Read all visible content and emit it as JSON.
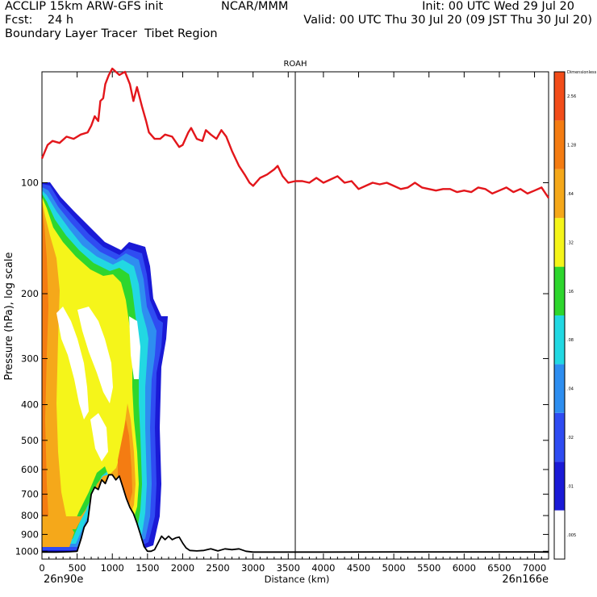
{
  "header": {
    "line1_left": "ACCLIP 15km ARW-GFS init",
    "line1_mid": "NCAR/MMM",
    "line1_right": "Init: 00 UTC Wed 29 Jul 20",
    "line2_left": "Fcst:    24 h",
    "line2_right": "Valid: 00 UTC Thu 30 Jul 20 (09 JST Thu 30 Jul 20)",
    "line3_left": "Boundary Layer Tracer  Tibet Region"
  },
  "chart_data": {
    "type": "heatmap",
    "title": "",
    "xlabel": "Distance (km)",
    "ylabel": "Pressure (hPa), log scale",
    "y_scale": "log",
    "xlim": [
      0,
      7200
    ],
    "ylim": [
      1050,
      50
    ],
    "x_ticks": [
      0,
      500,
      1000,
      1500,
      2000,
      2500,
      3000,
      3500,
      4000,
      4500,
      5000,
      5500,
      6000,
      6500,
      7000
    ],
    "y_ticks": [
      100,
      200,
      300,
      400,
      500,
      600,
      700,
      800,
      900,
      1000
    ],
    "x_start_label": "26n90e",
    "x_end_label": "26n166e",
    "vertical_line": {
      "label": "ROAH",
      "x": 3600
    },
    "colorbar": {
      "levels": [
        ".005",
        ".01",
        ".02",
        ".04",
        ".08",
        ".16",
        ".32",
        ".64",
        "1.28",
        "2.56"
      ],
      "units_label": "Dimensionless",
      "colors": [
        "#ffffff",
        "#1a1ad6",
        "#2f4cf2",
        "#2e8ef0",
        "#22d8e2",
        "#2ed62e",
        "#f5f51a",
        "#f5a81a",
        "#f47c12",
        "#f24d1a"
      ]
    },
    "tropopause_line": {
      "color": "#e3161b",
      "x": [
        0,
        80,
        150,
        250,
        350,
        450,
        550,
        650,
        700,
        750,
        800,
        830,
        870,
        900,
        950,
        1000,
        1050,
        1100,
        1180,
        1250,
        1300,
        1350,
        1420,
        1480,
        1520,
        1600,
        1680,
        1750,
        1850,
        1950,
        2000,
        2080,
        2120,
        2200,
        2280,
        2330,
        2400,
        2480,
        2550,
        2620,
        2700,
        2800,
        2880,
        2950,
        3000,
        3100,
        3200,
        3300,
        3350,
        3420,
        3500,
        3600,
        3700,
        3800,
        3900,
        4000,
        4100,
        4200,
        4300,
        4400,
        4500,
        4600,
        4700,
        4800,
        4900,
        5000,
        5100,
        5200,
        5300,
        5400,
        5500,
        5600,
        5700,
        5800,
        5900,
        6000,
        6100,
        6200,
        6300,
        6400,
        6500,
        6600,
        6700,
        6800,
        6900,
        7000,
        7100,
        7200
      ],
      "y": [
        86,
        79,
        77,
        78,
        75,
        76,
        74,
        73,
        70,
        66,
        68,
        60,
        59,
        54,
        51,
        49,
        50,
        51,
        50,
        54,
        60,
        55,
        62,
        68,
        73,
        76,
        76,
        74,
        75,
        80,
        79,
        73,
        71,
        76,
        77,
        72,
        74,
        76,
        72,
        75,
        82,
        90,
        95,
        100,
        102,
        97,
        95,
        92,
        90,
        96,
        100,
        99,
        99,
        100,
        97,
        100,
        98,
        96,
        100,
        99,
        104,
        102,
        100,
        101,
        100,
        102,
        104,
        103,
        100,
        103,
        104,
        105,
        104,
        104,
        106,
        105,
        106,
        103,
        104,
        107,
        105,
        103,
        106,
        104,
        107,
        105,
        103,
        110
      ]
    },
    "terrain_line": {
      "color": "#000000",
      "x": [
        0,
        200,
        300,
        400,
        500,
        560,
        600,
        650,
        700,
        750,
        800,
        850,
        900,
        950,
        1000,
        1050,
        1100,
        1150,
        1200,
        1250,
        1300,
        1350,
        1400,
        1450,
        1500,
        1550,
        1600,
        1650,
        1700,
        1750,
        1800,
        1850,
        1900,
        1950,
        2000,
        2050,
        2100,
        2200,
        2300,
        2400,
        2500,
        2600,
        2700,
        2800,
        2900,
        3000,
        3500,
        4000,
        5000,
        6000,
        7000,
        7200
      ],
      "y": [
        1005,
        1005,
        1004,
        1003,
        1000,
        920,
        860,
        830,
        700,
        670,
        680,
        640,
        655,
        620,
        620,
        640,
        625,
        670,
        720,
        760,
        790,
        840,
        900,
        970,
        1000,
        1000,
        990,
        950,
        910,
        930,
        910,
        930,
        920,
        915,
        950,
        980,
        995,
        998,
        995,
        985,
        998,
        985,
        990,
        985,
        1000,
        1005,
        1005,
        1005,
        1004,
        1004,
        1004,
        1005
      ]
    }
  }
}
